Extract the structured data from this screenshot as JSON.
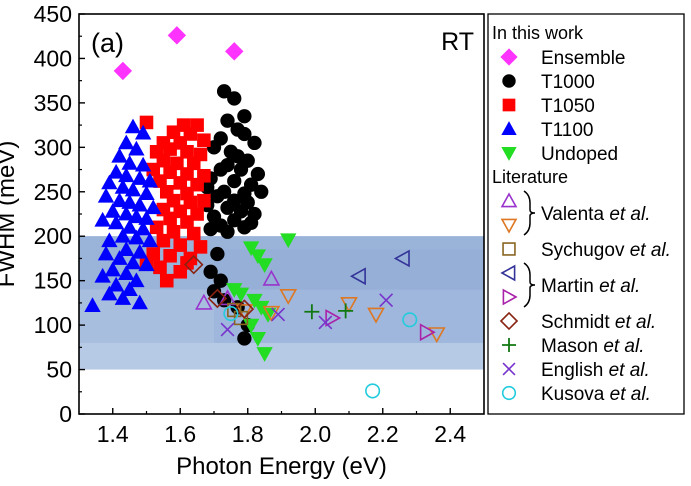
{
  "chart_data": {
    "type": "scatter",
    "panel_label": "(a)",
    "annotation": "RT",
    "xlabel": "Photon Energy (eV)",
    "ylabel": "FWHM (meV)",
    "xlim": [
      1.3,
      2.5
    ],
    "ylim": [
      0,
      450
    ],
    "xticks": [
      1.4,
      1.6,
      1.8,
      2.0,
      2.2,
      2.4
    ],
    "yticks": [
      0,
      50,
      100,
      150,
      200,
      250,
      300,
      350,
      400,
      450
    ],
    "grid": false,
    "legend_position": "right, outside plot",
    "shaded_bands": [
      {
        "x": [
          1.3,
          2.5
        ],
        "y": [
          50,
          200
        ],
        "color": "#a9bfe0"
      },
      {
        "x": [
          1.3,
          2.5
        ],
        "y": [
          80,
          200
        ],
        "color": "#9db5da"
      },
      {
        "x": [
          1.7,
          2.5
        ],
        "y": [
          80,
          185
        ],
        "color": "#97b0d8"
      },
      {
        "x": [
          1.3,
          2.5
        ],
        "y": [
          140,
          200
        ],
        "color": "#8eaad4"
      }
    ],
    "legend_headers": {
      "this_work": "In this work",
      "literature": "Literature"
    },
    "series": [
      {
        "name": "Ensemble",
        "group": "In this work",
        "marker": "diamond",
        "color": "#ff33ff",
        "filled": true,
        "points": [
          [
            1.43,
            386
          ],
          [
            1.59,
            426
          ],
          [
            1.76,
            408
          ]
        ]
      },
      {
        "name": "T1000",
        "group": "In this work",
        "marker": "circle",
        "color": "#000000",
        "filled": true,
        "points": [
          [
            1.73,
            363
          ],
          [
            1.76,
            355
          ],
          [
            1.79,
            335
          ],
          [
            1.74,
            330
          ],
          [
            1.77,
            320
          ],
          [
            1.72,
            310
          ],
          [
            1.79,
            315
          ],
          [
            1.82,
            305
          ],
          [
            1.7,
            300
          ],
          [
            1.75,
            295
          ],
          [
            1.77,
            290
          ],
          [
            1.8,
            285
          ],
          [
            1.74,
            280
          ],
          [
            1.72,
            275
          ],
          [
            1.78,
            275
          ],
          [
            1.83,
            270
          ],
          [
            1.69,
            265
          ],
          [
            1.76,
            262
          ],
          [
            1.81,
            258
          ],
          [
            1.68,
            255
          ],
          [
            1.73,
            250
          ],
          [
            1.79,
            248
          ],
          [
            1.84,
            250
          ],
          [
            1.71,
            245
          ],
          [
            1.76,
            240
          ],
          [
            1.8,
            238
          ],
          [
            1.68,
            235
          ],
          [
            1.74,
            232
          ],
          [
            1.78,
            228
          ],
          [
            1.82,
            225
          ],
          [
            1.7,
            222
          ],
          [
            1.76,
            218
          ],
          [
            1.72,
            212
          ],
          [
            1.79,
            210
          ],
          [
            1.81,
            215
          ],
          [
            1.69,
            208
          ],
          [
            1.74,
            205
          ],
          [
            1.71,
            180
          ],
          [
            1.69,
            160
          ],
          [
            1.72,
            150
          ],
          [
            1.7,
            138
          ],
          [
            1.73,
            128
          ],
          [
            1.8,
            100
          ],
          [
            1.79,
            85
          ],
          [
            1.77,
            120
          ]
        ]
      },
      {
        "name": "T1050",
        "group": "In this work",
        "marker": "square",
        "color": "#ff0000",
        "filled": true,
        "points": [
          [
            1.5,
            328
          ],
          [
            1.61,
            325
          ],
          [
            1.65,
            325
          ],
          [
            1.58,
            317
          ],
          [
            1.63,
            315
          ],
          [
            1.55,
            305
          ],
          [
            1.6,
            305
          ],
          [
            1.67,
            308
          ],
          [
            1.53,
            295
          ],
          [
            1.57,
            298
          ],
          [
            1.62,
            295
          ],
          [
            1.66,
            292
          ],
          [
            1.55,
            285
          ],
          [
            1.59,
            282
          ],
          [
            1.64,
            282
          ],
          [
            1.52,
            275
          ],
          [
            1.57,
            272
          ],
          [
            1.62,
            270
          ],
          [
            1.67,
            268
          ],
          [
            1.54,
            262
          ],
          [
            1.6,
            260
          ],
          [
            1.65,
            258
          ],
          [
            1.56,
            250
          ],
          [
            1.62,
            248
          ],
          [
            1.58,
            240
          ],
          [
            1.63,
            238
          ],
          [
            1.67,
            240
          ],
          [
            1.55,
            230
          ],
          [
            1.6,
            228
          ],
          [
            1.65,
            225
          ],
          [
            1.57,
            220
          ],
          [
            1.62,
            216
          ],
          [
            1.53,
            210
          ],
          [
            1.58,
            205
          ],
          [
            1.64,
            203
          ],
          [
            1.55,
            195
          ],
          [
            1.6,
            190
          ],
          [
            1.66,
            188
          ],
          [
            1.52,
            180
          ],
          [
            1.57,
            178
          ],
          [
            1.63,
            175
          ],
          [
            1.54,
            165
          ],
          [
            1.6,
            160
          ],
          [
            1.56,
            150
          ],
          [
            1.62,
            170
          ],
          [
            1.5,
            170
          ]
        ]
      },
      {
        "name": "T1100",
        "group": "In this work",
        "marker": "triangle-up",
        "color": "#0000ff",
        "filled": true,
        "points": [
          [
            1.46,
            323
          ],
          [
            1.49,
            316
          ],
          [
            1.44,
            305
          ],
          [
            1.47,
            298
          ],
          [
            1.42,
            290
          ],
          [
            1.45,
            282
          ],
          [
            1.49,
            280
          ],
          [
            1.41,
            272
          ],
          [
            1.44,
            268
          ],
          [
            1.48,
            265
          ],
          [
            1.51,
            262
          ],
          [
            1.39,
            260
          ],
          [
            1.43,
            255
          ],
          [
            1.46,
            252
          ],
          [
            1.5,
            248
          ],
          [
            1.38,
            245
          ],
          [
            1.42,
            240
          ],
          [
            1.45,
            238
          ],
          [
            1.48,
            235
          ],
          [
            1.52,
            232
          ],
          [
            1.4,
            228
          ],
          [
            1.44,
            225
          ],
          [
            1.47,
            222
          ],
          [
            1.5,
            220
          ],
          [
            1.37,
            218
          ],
          [
            1.41,
            215
          ],
          [
            1.45,
            210
          ],
          [
            1.49,
            208
          ],
          [
            1.43,
            200
          ],
          [
            1.47,
            198
          ],
          [
            1.39,
            195
          ],
          [
            1.51,
            195
          ],
          [
            1.44,
            185
          ],
          [
            1.48,
            182
          ],
          [
            1.38,
            180
          ],
          [
            1.42,
            175
          ],
          [
            1.46,
            170
          ],
          [
            1.5,
            168
          ],
          [
            1.4,
            162
          ],
          [
            1.44,
            158
          ],
          [
            1.37,
            155
          ],
          [
            1.47,
            150
          ],
          [
            1.41,
            145
          ],
          [
            1.45,
            140
          ],
          [
            1.39,
            135
          ],
          [
            1.43,
            130
          ],
          [
            1.34,
            122
          ],
          [
            1.48,
            125
          ]
        ]
      },
      {
        "name": "Undoped",
        "group": "In this work",
        "marker": "triangle-down",
        "color": "#22dd22",
        "filled": true,
        "points": [
          [
            1.92,
            196
          ],
          [
            1.81,
            187
          ],
          [
            1.83,
            178
          ],
          [
            1.85,
            168
          ],
          [
            1.76,
            140
          ],
          [
            1.78,
            135
          ],
          [
            1.82,
            128
          ],
          [
            1.84,
            120
          ],
          [
            1.86,
            112
          ],
          [
            1.81,
            100
          ],
          [
            1.83,
            85
          ],
          [
            1.85,
            68
          ]
        ]
      },
      {
        "name": "Valenta et al.",
        "legend_label": "Valenta",
        "group": "Literature",
        "marker": "triangle-up",
        "color": "#9933cc",
        "filled": false,
        "points": [
          [
            1.67,
            125
          ],
          [
            1.87,
            152
          ],
          [
            1.74,
            130
          ]
        ]
      },
      {
        "name": "Valenta et al.",
        "legend_label": "Valenta",
        "group": "Literature",
        "marker": "triangle-down",
        "color": "#dd7722",
        "filled": false,
        "points": [
          [
            1.79,
            116
          ],
          [
            1.87,
            114
          ],
          [
            1.92,
            133
          ],
          [
            2.1,
            124
          ],
          [
            2.18,
            112
          ],
          [
            2.36,
            90
          ]
        ]
      },
      {
        "name": "Sychugov et al.",
        "legend_label": "Sychugov",
        "group": "Literature",
        "marker": "square",
        "color": "#886622",
        "filled": false,
        "points": [
          [
            1.76,
            117
          ],
          [
            1.78,
            108
          ]
        ]
      },
      {
        "name": "Martin et al.",
        "legend_label": "Martin",
        "group": "Literature",
        "marker": "triangle-left",
        "color": "#333399",
        "filled": false,
        "points": [
          [
            2.13,
            155
          ],
          [
            2.26,
            175
          ]
        ]
      },
      {
        "name": "Martin et al.",
        "legend_label": "Martin",
        "group": "Literature",
        "marker": "triangle-right",
        "color": "#aa22aa",
        "filled": false,
        "points": [
          [
            2.33,
            92
          ],
          [
            2.05,
            108
          ]
        ]
      },
      {
        "name": "Schmidt et al.",
        "legend_label": "Schmidt",
        "group": "Literature",
        "marker": "diamond",
        "color": "#882211",
        "filled": false,
        "points": [
          [
            1.64,
            168
          ],
          [
            1.71,
            130
          ],
          [
            1.79,
            118
          ]
        ]
      },
      {
        "name": "Mason et al.",
        "legend_label": "Mason",
        "group": "Literature",
        "marker": "plus",
        "color": "#117711",
        "filled": false,
        "points": [
          [
            1.99,
            115
          ],
          [
            2.09,
            116
          ]
        ]
      },
      {
        "name": "English et al.",
        "legend_label": "English",
        "group": "Literature",
        "marker": "x",
        "color": "#7733cc",
        "filled": false,
        "points": [
          [
            1.74,
            95
          ],
          [
            1.89,
            112
          ],
          [
            2.03,
            103
          ],
          [
            2.21,
            128
          ]
        ]
      },
      {
        "name": "Kusova et al.",
        "legend_label": "Kusova",
        "group": "Literature",
        "marker": "circle",
        "color": "#22ccdd",
        "filled": false,
        "points": [
          [
            1.75,
            113
          ],
          [
            2.28,
            106
          ],
          [
            2.17,
            26
          ]
        ]
      }
    ],
    "legend_entries": [
      {
        "type": "header",
        "text": "In this work"
      },
      {
        "type": "item",
        "label": "Ensemble",
        "markers": [
          {
            "m": "diamond",
            "c": "#ff33ff",
            "f": true
          }
        ]
      },
      {
        "type": "item",
        "label": "T1000",
        "markers": [
          {
            "m": "circle",
            "c": "#000000",
            "f": true
          }
        ]
      },
      {
        "type": "item",
        "label": "T1050",
        "markers": [
          {
            "m": "square",
            "c": "#ff0000",
            "f": true
          }
        ]
      },
      {
        "type": "item",
        "label": "T1100",
        "markers": [
          {
            "m": "triangle-up",
            "c": "#0000ff",
            "f": true
          }
        ]
      },
      {
        "type": "item",
        "label": "Undoped",
        "markers": [
          {
            "m": "triangle-down",
            "c": "#22dd22",
            "f": true
          }
        ]
      },
      {
        "type": "header",
        "text": "Literature"
      },
      {
        "type": "item",
        "label": "Valenta",
        "etal": "et al.",
        "brace": true,
        "markers": [
          {
            "m": "triangle-up",
            "c": "#9933cc",
            "f": false
          },
          {
            "m": "triangle-down",
            "c": "#dd7722",
            "f": false
          }
        ]
      },
      {
        "type": "item",
        "label": "Sychugov",
        "etal": "et al.",
        "markers": [
          {
            "m": "square",
            "c": "#886622",
            "f": false
          }
        ]
      },
      {
        "type": "item",
        "label": "Martin",
        "etal": "et al.",
        "brace": true,
        "markers": [
          {
            "m": "triangle-left",
            "c": "#333399",
            "f": false
          },
          {
            "m": "triangle-right",
            "c": "#aa22aa",
            "f": false
          }
        ]
      },
      {
        "type": "item",
        "label": "Schmidt",
        "etal": "et al.",
        "markers": [
          {
            "m": "diamond",
            "c": "#882211",
            "f": false
          }
        ]
      },
      {
        "type": "item",
        "label": "Mason",
        "etal": "et al.",
        "markers": [
          {
            "m": "plus",
            "c": "#117711",
            "f": false
          }
        ]
      },
      {
        "type": "item",
        "label": "English",
        "etal": "et al.",
        "markers": [
          {
            "m": "x",
            "c": "#7733cc",
            "f": false
          }
        ]
      },
      {
        "type": "item",
        "label": "Kusova",
        "etal": "et al.",
        "markers": [
          {
            "m": "circle",
            "c": "#22ccdd",
            "f": false
          }
        ]
      }
    ]
  }
}
